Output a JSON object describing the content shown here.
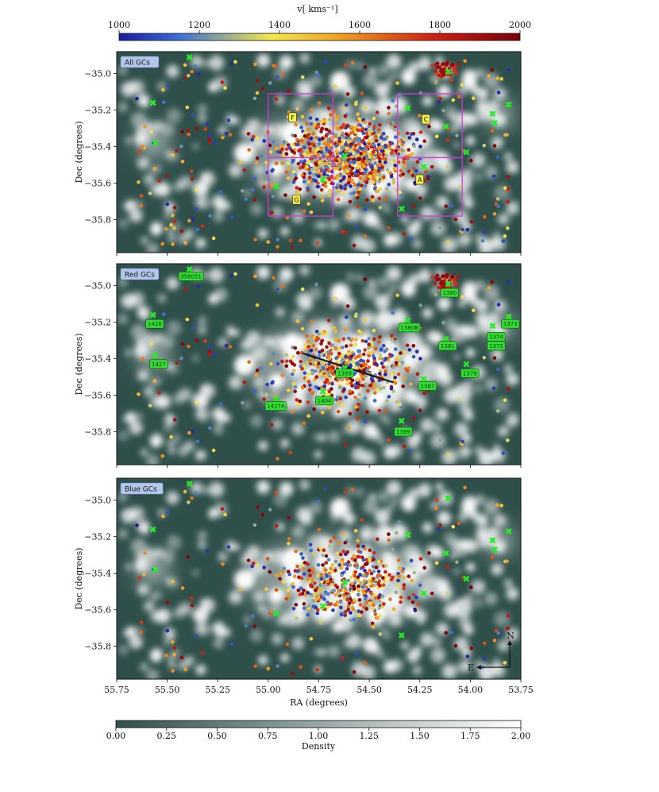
{
  "chart_data": [
    {
      "type": "scatter",
      "panel_label": "All GCs",
      "xlim": [
        55.75,
        53.75
      ],
      "ylim": [
        -35.98,
        -34.88
      ],
      "yticks": [
        "−35.8",
        "−35.6",
        "−35.4",
        "−35.2",
        "−35.0"
      ],
      "ylabel": "Dec (degrees)",
      "background_color": "#2f4f4b",
      "regions": [
        {
          "label": "F",
          "ra": [
            55.0,
            54.68
          ],
          "dec": [
            -35.46,
            -35.11
          ]
        },
        {
          "label": "G",
          "ra": [
            55.0,
            54.68
          ],
          "dec": [
            -35.78,
            -35.46
          ]
        },
        {
          "label": "C",
          "ra": [
            54.36,
            54.04
          ],
          "dec": [
            -35.46,
            -35.11
          ]
        },
        {
          "label": "A",
          "ra": [
            54.36,
            54.04
          ],
          "dec": [
            -35.78,
            -35.46
          ]
        }
      ],
      "region_labels": [
        {
          "text": "F",
          "ra": 54.88,
          "dec": -35.24
        },
        {
          "text": "G",
          "ra": 54.86,
          "dec": -35.69
        },
        {
          "text": "C",
          "ra": 54.22,
          "dec": -35.25
        },
        {
          "text": "A",
          "ra": 54.25,
          "dec": -35.58
        }
      ]
    },
    {
      "type": "scatter",
      "panel_label": "Red GCs",
      "xlim": [
        55.75,
        53.75
      ],
      "ylim": [
        -35.98,
        -34.88
      ],
      "yticks": [
        "−35.8",
        "−35.6",
        "−35.4",
        "−35.2",
        "−35.0"
      ],
      "ylabel": "Dec (degrees)",
      "major_axis_line": {
        "ra": [
          54.83,
          54.38
        ],
        "dec": [
          -35.37,
          -35.53
        ]
      },
      "galaxy_labels": [
        {
          "text": "358051",
          "ra": 55.39,
          "dec": -34.91
        },
        {
          "text": "1380",
          "ra": 54.11,
          "dec": -35.0
        },
        {
          "text": "1428",
          "ra": 55.57,
          "dec": -35.17
        },
        {
          "text": "1380B",
          "ra": 54.31,
          "dec": -35.19
        },
        {
          "text": "1373",
          "ra": 53.81,
          "dec": -35.17
        },
        {
          "text": "1374",
          "ra": 53.88,
          "dec": -35.24
        },
        {
          "text": "1375",
          "ra": 53.88,
          "dec": -35.29
        },
        {
          "text": "1381",
          "ra": 54.12,
          "dec": -35.29
        },
        {
          "text": "1427",
          "ra": 55.55,
          "dec": -35.39
        },
        {
          "text": "1399",
          "ra": 54.63,
          "dec": -35.44
        },
        {
          "text": "1379",
          "ra": 54.01,
          "dec": -35.44
        },
        {
          "text": "1387",
          "ra": 54.22,
          "dec": -35.51
        },
        {
          "text": "1404",
          "ra": 54.73,
          "dec": -35.59
        },
        {
          "text": "1427A",
          "ra": 54.97,
          "dec": -35.62
        },
        {
          "text": "1389",
          "ra": 54.34,
          "dec": -35.76
        }
      ]
    },
    {
      "type": "scatter",
      "panel_label": "Blue GCs",
      "xlim": [
        55.75,
        53.75
      ],
      "ylim": [
        -35.98,
        -34.88
      ],
      "xticks": [
        "55.75",
        "55.50",
        "55.25",
        "55.00",
        "54.75",
        "54.50",
        "54.25",
        "54.00",
        "53.75"
      ],
      "yticks": [
        "−35.8",
        "−35.6",
        "−35.4",
        "−35.2",
        "−35.0"
      ],
      "xlabel": "RA (degrees)",
      "ylabel": "Dec (degrees)",
      "compass": {
        "north": "N",
        "east": "E"
      }
    }
  ],
  "galaxy_markers": [
    {
      "ra": 55.39,
      "dec": -34.91
    },
    {
      "ra": 54.11,
      "dec": -34.99
    },
    {
      "ra": 55.57,
      "dec": -35.16
    },
    {
      "ra": 54.31,
      "dec": -35.19
    },
    {
      "ra": 53.81,
      "dec": -35.17
    },
    {
      "ra": 53.89,
      "dec": -35.22
    },
    {
      "ra": 53.88,
      "dec": -35.27
    },
    {
      "ra": 54.12,
      "dec": -35.29
    },
    {
      "ra": 55.56,
      "dec": -35.38
    },
    {
      "ra": 54.62,
      "dec": -35.45
    },
    {
      "ra": 54.02,
      "dec": -35.43
    },
    {
      "ra": 54.23,
      "dec": -35.51
    },
    {
      "ra": 54.73,
      "dec": -35.58
    },
    {
      "ra": 54.96,
      "dec": -35.62
    },
    {
      "ra": 54.34,
      "dec": -35.74
    }
  ],
  "velocity_colorbar": {
    "label": "v[ kms⁻¹]",
    "ticks": [
      "1000",
      "1200",
      "1400",
      "1600",
      "1800",
      "2000"
    ],
    "range": [
      1000,
      2000
    ],
    "colors": [
      "#1a1aa0",
      "#3b6fd8",
      "#f2e84a",
      "#f0a020",
      "#d02010",
      "#7a0008"
    ]
  },
  "density_colorbar": {
    "label": "Density",
    "ticks": [
      "0.00",
      "0.25",
      "0.50",
      "0.75",
      "1.00",
      "1.25",
      "1.50",
      "1.75",
      "2.00"
    ],
    "range": [
      0,
      2
    ],
    "colors": [
      "#2f4f4b",
      "#ffffff"
    ]
  }
}
